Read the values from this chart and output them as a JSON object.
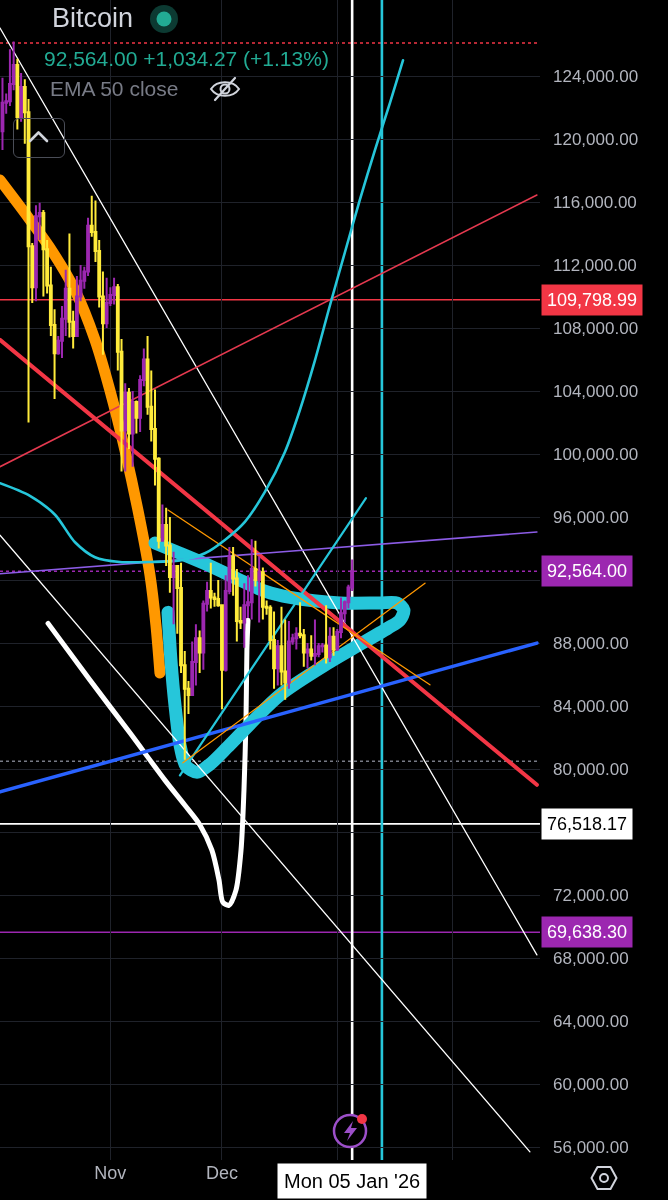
{
  "chart_data": {
    "type": "candlestick",
    "title": "Bitcoin",
    "subtitle": "92,564.00 +1,034.27 (+1.13%)",
    "annotations": [
      "EMA 50 close"
    ],
    "x": [
      "2025-10-03",
      "2025-10-04",
      "2025-10-05",
      "2025-10-06",
      "2025-10-07",
      "2025-10-08",
      "2025-10-09",
      "2025-10-10",
      "2025-10-11",
      "2025-10-12",
      "2025-10-13",
      "2025-10-14",
      "2025-10-15",
      "2025-10-16",
      "2025-10-17",
      "2025-10-18",
      "2025-10-19",
      "2025-10-20",
      "2025-10-21",
      "2025-10-22",
      "2025-10-23",
      "2025-10-24",
      "2025-10-25",
      "2025-10-26",
      "2025-10-27",
      "2025-10-28",
      "2025-10-29",
      "2025-10-30",
      "2025-10-31",
      "2025-11-01",
      "2025-11-02",
      "2025-11-03",
      "2025-11-04",
      "2025-11-05",
      "2025-11-06",
      "2025-11-07",
      "2025-11-08",
      "2025-11-09",
      "2025-11-10",
      "2025-11-11",
      "2025-11-12",
      "2025-11-13",
      "2025-11-14",
      "2025-11-15",
      "2025-11-16",
      "2025-11-17",
      "2025-11-18",
      "2025-11-19",
      "2025-11-20",
      "2025-11-21",
      "2025-11-22",
      "2025-11-23",
      "2025-11-24",
      "2025-11-25",
      "2025-11-26",
      "2025-11-27",
      "2025-11-28",
      "2025-11-29",
      "2025-11-30",
      "2025-12-01",
      "2025-12-02",
      "2025-12-03",
      "2025-12-04",
      "2025-12-05",
      "2025-12-06",
      "2025-12-07",
      "2025-12-08",
      "2025-12-09",
      "2025-12-10",
      "2025-12-11",
      "2025-12-12",
      "2025-12-13",
      "2025-12-14",
      "2025-12-15",
      "2025-12-16",
      "2025-12-17",
      "2025-12-18",
      "2025-12-19",
      "2025-12-20",
      "2025-12-21",
      "2025-12-22",
      "2025-12-23",
      "2025-12-24",
      "2025-12-25",
      "2025-12-26",
      "2025-12-27",
      "2025-12-28",
      "2025-12-29",
      "2025-12-30",
      "2025-12-31",
      "2026-01-01",
      "2026-01-02",
      "2026-01-03",
      "2026-01-04",
      "2026-01-05"
    ],
    "ohlc": [
      [
        120500,
        123900,
        119300,
        122300
      ],
      [
        122300,
        122900,
        121600,
        122400
      ],
      [
        122400,
        125700,
        122100,
        123500
      ],
      [
        123500,
        126200,
        123100,
        124700
      ],
      [
        124700,
        125100,
        120600,
        121400
      ],
      [
        121400,
        124200,
        121100,
        123300
      ],
      [
        123300,
        123800,
        119700,
        121700
      ],
      [
        121700,
        122550,
        102000,
        113200
      ],
      [
        113200,
        113400,
        109600,
        110600
      ],
      [
        110600,
        115800,
        109700,
        115100
      ],
      [
        115100,
        115950,
        113600,
        115300
      ],
      [
        115300,
        115500,
        110000,
        113000
      ],
      [
        113000,
        113600,
        110200,
        110700
      ],
      [
        110700,
        111900,
        107500,
        108200
      ],
      [
        108200,
        109200,
        103500,
        106400
      ],
      [
        106400,
        107500,
        106300,
        107200
      ],
      [
        107200,
        109400,
        106100,
        108600
      ],
      [
        108600,
        111700,
        107500,
        110500
      ],
      [
        110500,
        114000,
        107400,
        108400
      ],
      [
        108400,
        109100,
        106700,
        107500
      ],
      [
        107500,
        111300,
        107500,
        110000
      ],
      [
        110000,
        112000,
        109700,
        111000
      ],
      [
        111000,
        111900,
        110500,
        111600
      ],
      [
        111600,
        115000,
        111300,
        114500
      ],
      [
        114500,
        116400,
        113800,
        114100
      ],
      [
        114100,
        116100,
        112200,
        112900
      ],
      [
        112900,
        113600,
        109300,
        110000
      ],
      [
        110000,
        111600,
        106300,
        108300
      ],
      [
        108300,
        111200,
        108000,
        109600
      ],
      [
        109600,
        110600,
        109400,
        110100
      ],
      [
        110100,
        111200,
        109500,
        110600
      ],
      [
        110600,
        110800,
        105300,
        106500
      ],
      [
        106500,
        107300,
        98900,
        101500
      ],
      [
        101500,
        104500,
        98900,
        103900
      ],
      [
        103900,
        104200,
        100300,
        101300
      ],
      [
        101300,
        104000,
        99200,
        103300
      ],
      [
        103300,
        103400,
        101300,
        102300
      ],
      [
        102300,
        105000,
        101400,
        104700
      ],
      [
        104700,
        106700,
        104300,
        106000
      ],
      [
        106000,
        107500,
        102500,
        103000
      ],
      [
        103000,
        105300,
        100800,
        101600
      ],
      [
        101600,
        104100,
        98000,
        99700
      ],
      [
        99700,
        99800,
        94000,
        94500
      ],
      [
        94500,
        96800,
        94500,
        95500
      ],
      [
        95500,
        96600,
        92900,
        94200
      ],
      [
        94200,
        96000,
        91200,
        92200
      ],
      [
        92200,
        93800,
        89200,
        92900
      ],
      [
        92900,
        92900,
        88600,
        91500
      ],
      [
        91500,
        93100,
        86100,
        86600
      ],
      [
        86600,
        87500,
        80600,
        85100
      ],
      [
        85100,
        85600,
        83500,
        84700
      ],
      [
        84700,
        88100,
        84700,
        86800
      ],
      [
        86800,
        89200,
        85300,
        88300
      ],
      [
        88300,
        88800,
        86100,
        87400
      ],
      [
        87400,
        90700,
        86300,
        90500
      ],
      [
        90500,
        91900,
        90000,
        91300
      ],
      [
        91300,
        93100,
        90200,
        90900
      ],
      [
        90900,
        91200,
        90300,
        90800
      ],
      [
        90800,
        92000,
        90300,
        90400
      ],
      [
        90400,
        90400,
        83800,
        86300
      ],
      [
        86300,
        92300,
        86200,
        91300
      ],
      [
        91300,
        94100,
        91100,
        93500
      ],
      [
        93500,
        94100,
        91000,
        92100
      ],
      [
        92100,
        92700,
        88100,
        89400
      ],
      [
        89400,
        90300,
        88900,
        89300
      ],
      [
        89300,
        91800,
        87700,
        90400
      ],
      [
        90400,
        92300,
        89600,
        90600
      ],
      [
        90600,
        94600,
        89500,
        92700
      ],
      [
        92700,
        94500,
        91600,
        92000
      ],
      [
        92000,
        93500,
        89300,
        92500
      ],
      [
        92500,
        92800,
        89500,
        90300
      ],
      [
        90300,
        90700,
        89800,
        90250
      ],
      [
        90250,
        90400,
        87600,
        88200
      ],
      [
        88200,
        90000,
        85100,
        86400
      ],
      [
        86400,
        88200,
        85300,
        87800
      ],
      [
        87800,
        90300,
        85300,
        86200
      ],
      [
        86200,
        89500,
        84400,
        85500
      ],
      [
        85500,
        89400,
        85100,
        88100
      ],
      [
        88100,
        88600,
        87900,
        88300
      ],
      [
        88300,
        89000,
        87600,
        88600
      ],
      [
        88600,
        90600,
        88300,
        88500
      ],
      [
        88500,
        88900,
        86500,
        87400
      ],
      [
        87400,
        88000,
        86400,
        87600
      ],
      [
        87600,
        88500,
        86900,
        87200
      ],
      [
        87200,
        89500,
        86600,
        87300
      ],
      [
        87300,
        88000,
        87100,
        87800
      ],
      [
        87800,
        88000,
        87400,
        87850
      ],
      [
        87850,
        90400,
        86700,
        87100
      ],
      [
        87100,
        89000,
        86800,
        88400
      ],
      [
        88400,
        89000,
        87200,
        87600
      ],
      [
        87600,
        88900,
        87500,
        88700
      ],
      [
        88700,
        90900,
        88300,
        89900
      ],
      [
        89900,
        90700,
        89300,
        90600
      ],
      [
        90600,
        91700,
        90200,
        91530
      ],
      [
        91530,
        93300,
        91300,
        92564
      ]
    ],
    "colors": [
      "#9c27b0",
      "#9c27b0",
      "#9c27b0",
      "#9c27b0",
      "#ffeb3b",
      "#9c27b0",
      "#ffeb3b",
      "#ffeb3b",
      "#ffeb3b",
      "#9c27b0",
      "#9c27b0",
      "#ffeb3b",
      "#ffeb3b",
      "#ffeb3b",
      "#ffeb3b",
      "#9c27b0",
      "#9c27b0",
      "#9c27b0",
      "#ffeb3b",
      "#ffeb3b",
      "#9c27b0",
      "#9c27b0",
      "#9c27b0",
      "#9c27b0",
      "#ffeb3b",
      "#ffeb3b",
      "#ffeb3b",
      "#ffeb3b",
      "#9c27b0",
      "#9c27b0",
      "#9c27b0",
      "#ffeb3b",
      "#ffeb3b",
      "#9c27b0",
      "#ffeb3b",
      "#9c27b0",
      "#ffeb3b",
      "#9c27b0",
      "#9c27b0",
      "#ffeb3b",
      "#ffeb3b",
      "#ffeb3b",
      "#ffeb3b",
      "#9c27b0",
      "#ffeb3b",
      "#ffeb3b",
      "#9c27b0",
      "#ffeb3b",
      "#ffeb3b",
      "#ffeb3b",
      "#ffeb3b",
      "#9c27b0",
      "#9c27b0",
      "#ffeb3b",
      "#9c27b0",
      "#9c27b0",
      "#ffeb3b",
      "#ffeb3b",
      "#ffeb3b",
      "#ffeb3b",
      "#9c27b0",
      "#9c27b0",
      "#ffeb3b",
      "#ffeb3b",
      "#ffeb3b",
      "#9c27b0",
      "#9c27b0",
      "#9c27b0",
      "#ffeb3b",
      "#9c27b0",
      "#ffeb3b",
      "#ffeb3b",
      "#ffeb3b",
      "#ffeb3b",
      "#9c27b0",
      "#ffeb3b",
      "#ffeb3b",
      "#9c27b0",
      "#9c27b0",
      "#9c27b0",
      "#ffeb3b",
      "#ffeb3b",
      "#9c27b0",
      "#ffeb3b",
      "#9c27b0",
      "#9c27b0",
      "#9c27b0",
      "#ffeb3b",
      "#9c27b0",
      "#ffeb3b",
      "#9c27b0",
      "#9c27b0",
      "#9c27b0",
      "#9c27b0",
      "#9c27b0"
    ],
    "series": [
      {
        "type": "line",
        "color": "#ff9800",
        "x": [
          "2025-10-02T08:00",
          "2025-10-09T01:00",
          "2025-10-15T18:00",
          "2025-10-22T12:00",
          "2025-10-27T21:00",
          "2025-10-31T21:00",
          "2025-11-04T22:00",
          "2025-11-08T23:00",
          "2025-11-11T16:00",
          "2025-11-13T06:00",
          "2025-11-14T08:00"
        ],
        "values": [
          117400,
          115300,
          113100,
          110400,
          107250,
          104050,
          100250,
          95800,
          92300,
          89150,
          86100
        ]
      },
      {
        "type": "line",
        "color": "#ffffff",
        "x": [
          "2025-10-15T06:00",
          "2025-10-26T12:00",
          "2025-11-06T06:00",
          "2025-11-15T16:00",
          "2025-11-21T01:00",
          "2025-11-25T02:00",
          "2025-11-28T07:00",
          "2025-11-30T05:00",
          "2025-12-01T06:00",
          "2025-12-02T21:00",
          "2025-12-04T18:00",
          "2025-12-06T03:00",
          "2025-12-06T22:00",
          "2025-12-07T11:00",
          "2025-12-07T17:00",
          "2025-12-08T00:00"
        ],
        "values": [
          89250,
          85650,
          82300,
          79300,
          77700,
          76450,
          74850,
          72950,
          71550,
          71350,
          72300,
          74850,
          78650,
          83100,
          87550,
          89450
        ]
      },
      {
        "type": "line",
        "color": "#26c6da",
        "x": [
          "2025-11-13T00:00",
          "2025-11-19T17:00",
          "2025-11-27T18:00",
          "2025-12-05T20:00",
          "2025-12-12T13:00",
          "2025-12-19T07:00",
          "2026-01-01T17:00",
          "2026-01-12T11:00",
          "2026-01-17T01:00",
          "2026-01-18T22:00",
          "2026-01-17T20:00",
          "2026-01-14T15:00",
          "2026-01-04T10:00",
          "2025-12-30T01:00",
          "2025-12-16T14:00",
          "2025-12-03T04:00",
          "2025-11-27T18:00",
          "2025-11-24T07:00",
          "2025-11-21T08:00",
          "2025-11-19T17:00",
          "2025-11-18T09:00",
          "2025-11-17T07:00",
          "2025-11-16T12:00"
        ],
        "values": [
          94350,
          93700,
          92900,
          92000,
          91300,
          90900,
          90550,
          90550,
          90550,
          90100,
          89450,
          88950,
          87550,
          86800,
          84700,
          81550,
          80300,
          79800,
          80200,
          81550,
          84050,
          86900,
          89950
        ]
      },
      {
        "type": "line",
        "color": "#ffffff",
        "x": [
          "2025-10-02T08:00",
          "2026-02-23T16:00"
        ],
        "values": [
          127050,
          68200
        ]
      },
      {
        "type": "line",
        "color": "#ffffff",
        "x": [
          "2025-10-02T08:00",
          "2026-02-21T19:00"
        ],
        "values": [
          94850,
          55700
        ]
      },
      {
        "type": "line",
        "color": "#f23645",
        "x": [
          "2025-10-02T08:00",
          "2026-02-23T16:00"
        ],
        "values": [
          107250,
          79000
        ]
      },
      {
        "type": "line",
        "color": "#e5394f",
        "x": [
          "2025-10-02T08:00",
          "2026-02-23T16:00"
        ],
        "values": [
          99200,
          116450
        ]
      },
      {
        "type": "line",
        "color": "#2962ff",
        "x": [
          "2025-10-02T08:00",
          "2026-02-23T16:00"
        ],
        "values": [
          78550,
          88000
        ]
      },
      {
        "type": "line",
        "color": "#8c5ce6",
        "x": [
          "2025-10-02T08:00",
          "2026-02-23T16:00"
        ],
        "values": [
          92400,
          95050
        ]
      },
      {
        "type": "line",
        "color": "#26c6da",
        "x": [
          "2025-11-19T17:00",
          "2026-01-08T17:00"
        ],
        "values": [
          79600,
          97200
        ]
      },
      {
        "type": "line",
        "color": "#ff9800",
        "x": [
          "2025-11-16T12:00",
          "2026-01-25T22:00"
        ],
        "values": [
          96450,
          85350
        ]
      },
      {
        "type": "line",
        "color": "#ff9800",
        "x": [
          "2025-11-20T12:00",
          "2026-01-24T14:00"
        ],
        "values": [
          80400,
          91800
        ]
      },
      {
        "type": "line",
        "color": "#26c6da",
        "x": [
          "2025-10-02T08:00",
          "2025-10-10T09:00",
          "2025-10-17T03:00",
          "2025-10-22T12:00",
          "2025-10-27T21:00",
          "2025-11-03T14:00",
          "2025-11-11T16:00",
          "2025-11-19T17:00",
          "2025-11-26T10:00",
          "2025-12-01T19:00",
          "2025-12-07T04:00",
          "2025-12-12T13:00",
          "2025-12-17T23:00",
          "2025-12-21T23:00",
          "2025-12-26T00:00",
          "2025-12-30T01:00",
          "2026-01-03T01:00",
          "2026-01-07T02:00",
          "2026-01-11T03:00",
          "2026-01-15T04:00",
          "2026-01-18T16:00"
        ],
        "values": [
          98150,
          97350,
          96150,
          94400,
          93450,
          93150,
          93150,
          93250,
          93700,
          94550,
          95700,
          97600,
          100150,
          102800,
          105950,
          109450,
          112800,
          116150,
          119300,
          122300,
          125000
        ]
      }
    ],
    "xlim": [
      "2025-10-02T08:00",
      "2026-02-24T12:00"
    ],
    "xticks": [
      {
        "value": "2025-11-01",
        "label": "Nov"
      },
      {
        "value": "2025-12-01",
        "label": "Dec"
      },
      {
        "value": "2026-01-01",
        "label": null
      },
      {
        "value": "2026-02-01",
        "label": null
      }
    ],
    "ylim": [
      55180,
      128830
    ],
    "yticks": [
      {
        "value": 124000,
        "label": "124,000.00"
      },
      {
        "value": 120000,
        "label": "120,000.00"
      },
      {
        "value": 116000,
        "label": "116,000.00"
      },
      {
        "value": 112000,
        "label": "112,000.00"
      },
      {
        "value": 108000,
        "label": "108,000.00"
      },
      {
        "value": 104000,
        "label": "104,000.00"
      },
      {
        "value": 100000,
        "label": "100,000.00"
      },
      {
        "value": 96000,
        "label": "96,000.00"
      },
      {
        "value": 92000,
        "label": null
      },
      {
        "value": 88000,
        "label": "88,000.00"
      },
      {
        "value": 84000,
        "label": "84,000.00"
      },
      {
        "value": 80000,
        "label": "80,000.00"
      },
      {
        "value": 76000,
        "label": null
      },
      {
        "value": 72000,
        "label": "72,000.00"
      },
      {
        "value": 68000,
        "label": "68,000.00"
      },
      {
        "value": 64000,
        "label": "64,000.00"
      },
      {
        "value": 60000,
        "label": "60,000.00"
      },
      {
        "value": 56000,
        "label": "56,000.00"
      }
    ],
    "ref_lines": [
      {
        "axis": "y",
        "value": 126100,
        "color": "#f23645",
        "line_style": "dotted"
      },
      {
        "axis": "y",
        "value": 109798.99,
        "label": "109,798.99",
        "color": "#f23645"
      },
      {
        "axis": "y",
        "value": 92564,
        "label": "92,564.00",
        "color": "#9c27b0",
        "line_style": "dotted"
      },
      {
        "axis": "y",
        "value": 80500,
        "color": "#787b86",
        "line_style": "dotted"
      },
      {
        "axis": "y",
        "value": 76518.17,
        "label": "76,518.17",
        "color": "#ffffff"
      },
      {
        "axis": "y",
        "value": 69638.3,
        "label": "69,638.30",
        "color": "#9c27b0"
      },
      {
        "axis": "x",
        "value": "2026-01-05",
        "label": "Mon 05 Jan '26",
        "color": "#ffffff"
      },
      {
        "axis": "x",
        "value": "2026-01-13",
        "color": "#26c6da"
      }
    ],
    "grid": true
  }
}
